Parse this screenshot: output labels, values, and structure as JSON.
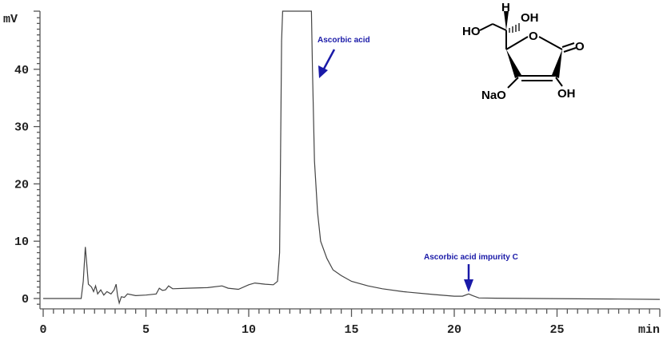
{
  "chart_data": {
    "type": "line",
    "title": "",
    "xlabel": "min",
    "ylabel": "mV",
    "xlim": [
      0,
      30
    ],
    "ylim": [
      -1.5,
      50
    ],
    "x_ticks": [
      "0",
      "5",
      "10",
      "15",
      "20",
      "25"
    ],
    "y_ticks": [
      "0",
      "10",
      "20",
      "30",
      "40"
    ],
    "grid": false,
    "series": [
      {
        "x": [
          0,
          1.85,
          1.95,
          2.05,
          2.12,
          2.2,
          2.35,
          2.45,
          2.55,
          2.65,
          2.8,
          2.95,
          3.1,
          3.3,
          3.45,
          3.55,
          3.62,
          3.7,
          3.8,
          3.95,
          4.1,
          4.5,
          5.0,
          5.5,
          5.65,
          5.8,
          5.95,
          6.1,
          6.3,
          7.0,
          8.0,
          8.7,
          9.0,
          9.5,
          10.0,
          10.3,
          10.8,
          11.2,
          11.4,
          11.5,
          11.55,
          11.6,
          11.65,
          13.05,
          13.1,
          13.2,
          13.35,
          13.5,
          13.8,
          14.1,
          14.5,
          15.0,
          15.8,
          16.5,
          17.5,
          19.0,
          20.0,
          20.4,
          20.7,
          20.9,
          21.2,
          22,
          24,
          26,
          28,
          30
        ],
        "y": [
          0,
          0,
          3,
          9,
          6,
          2.5,
          2,
          1.2,
          2.2,
          0.8,
          1.5,
          0.6,
          1.2,
          0.8,
          1.5,
          2.5,
          0.5,
          -0.8,
          0.3,
          0.2,
          0.8,
          0.5,
          0.6,
          0.8,
          1.8,
          1.4,
          1.5,
          2.2,
          1.7,
          1.8,
          1.9,
          2.2,
          1.8,
          1.6,
          2.4,
          2.7,
          2.5,
          2.4,
          3,
          8,
          25,
          45,
          60,
          60,
          40,
          24,
          15,
          10,
          7,
          5,
          4,
          3,
          2.2,
          1.7,
          1.2,
          0.7,
          0.4,
          0.4,
          0.8,
          0.5,
          0.1,
          0.05,
          0.0,
          -0.05,
          -0.1,
          -0.15
        ]
      }
    ],
    "annotations": [
      {
        "text": "Ascorbic acid",
        "x": 13.3,
        "y": 39
      },
      {
        "text": "Ascorbic acid impurity C",
        "x": 20.7,
        "y": 1
      }
    ],
    "arrow_color": "#1a1aa8",
    "line_color": "#444444"
  },
  "structure": {
    "atoms": [
      "H",
      "OH",
      "HO",
      "O",
      "O",
      "NaO",
      "OH"
    ]
  }
}
